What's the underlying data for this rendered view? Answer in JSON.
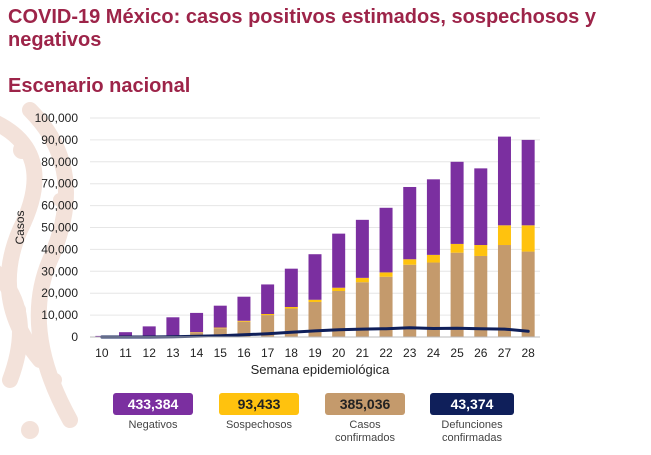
{
  "header": {
    "title": "COVID-19 México: casos positivos estimados, sospechosos y negativos",
    "subtitle": "Escenario nacional"
  },
  "colors": {
    "title": "#9d2449",
    "negativos": "#7b2fa0",
    "sospechosos": "#ffc20e",
    "confirmados": "#c49a6c",
    "defunciones": "#0f1f5a"
  },
  "chart_data": {
    "type": "bar",
    "stacked": true,
    "title": "",
    "xlabel": "Semana epidemiológica",
    "ylabel": "Casos",
    "ylim": [
      0,
      100000
    ],
    "yticks": [
      0,
      10000,
      20000,
      30000,
      40000,
      50000,
      60000,
      70000,
      80000,
      90000,
      100000
    ],
    "ytick_labels": [
      "0",
      "10,000",
      "20,000",
      "30,000",
      "40,000",
      "50,000",
      "60,000",
      "70,000",
      "80,000",
      "90,000",
      "100,000"
    ],
    "categories": [
      "10",
      "11",
      "12",
      "13",
      "14",
      "15",
      "16",
      "17",
      "18",
      "19",
      "20",
      "21",
      "22",
      "23",
      "24",
      "25",
      "26",
      "27",
      "28"
    ],
    "series": [
      {
        "name": "Casos confirmados",
        "kind": "bar",
        "values": [
          100,
          200,
          300,
          600,
          2000,
          4000,
          7000,
          10000,
          13000,
          16000,
          21000,
          25000,
          27500,
          33000,
          34000,
          38500,
          37000,
          42000,
          39000
        ]
      },
      {
        "name": "Sospechosos",
        "kind": "bar",
        "values": [
          0,
          0,
          50,
          100,
          200,
          300,
          400,
          500,
          700,
          1000,
          1500,
          2000,
          2000,
          2500,
          3500,
          4000,
          5000,
          9000,
          12000
        ]
      },
      {
        "name": "Negativos",
        "kind": "bar",
        "values": [
          400,
          2000,
          4500,
          8300,
          8800,
          10000,
          11000,
          13500,
          17500,
          20800,
          24700,
          26500,
          29500,
          33000,
          34500,
          37500,
          35000,
          40500,
          39000
        ]
      },
      {
        "name": "Defunciones",
        "kind": "line",
        "values": [
          0,
          0,
          0,
          100,
          300,
          600,
          1000,
          1500,
          2200,
          2800,
          3300,
          3600,
          3800,
          4200,
          3900,
          4000,
          3800,
          3600,
          2600
        ]
      }
    ]
  },
  "legend": [
    {
      "key": "negativos",
      "value": "433,384",
      "label": "Negativos"
    },
    {
      "key": "sospechosos",
      "value": "93,433",
      "label": "Sospechosos"
    },
    {
      "key": "confirmados",
      "value": "385,036",
      "label": "Casos confirmados"
    },
    {
      "key": "defunciones",
      "value": "43,374",
      "label": "Defunciones confirmadas"
    }
  ]
}
